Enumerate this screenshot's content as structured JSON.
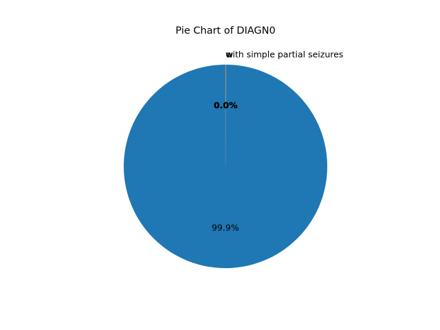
{
  "chart_data": {
    "type": "pie",
    "title": "Pie Chart of DIAGN0",
    "start_angle_deg": 90,
    "direction": "counterclockwise",
    "slices": [
      {
        "label": "",
        "value": 99.9,
        "pct_label": "99.9%",
        "color": "#1f77b4"
      },
      {
        "label": "w",
        "value": 0.04,
        "pct_label": "0.0%",
        "color": "#ff7f0e"
      },
      {
        "label": "o",
        "value": 0.03,
        "pct_label": "0.0%",
        "color": "#2ca02c"
      },
      {
        "label": "with simple partial seizures",
        "value": 0.03,
        "pct_label": "0.0%",
        "color": "#d62728"
      }
    ]
  }
}
